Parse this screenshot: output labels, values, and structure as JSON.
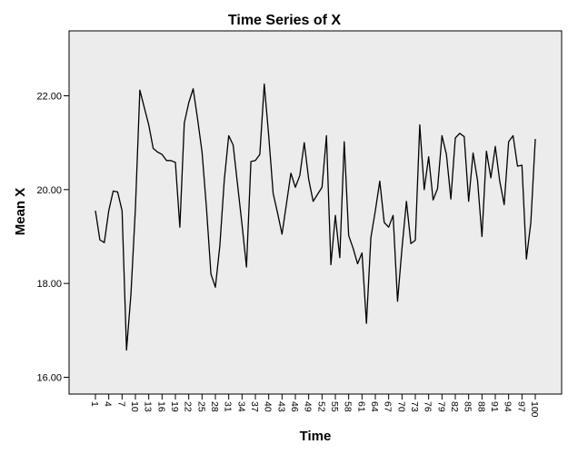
{
  "chart_data": {
    "type": "line",
    "title": "Time Series of X",
    "xlabel": "Time",
    "ylabel": "Mean X",
    "xlim": [
      1,
      100
    ],
    "ylim": [
      15.8,
      23.5
    ],
    "y_ticks": [
      16,
      18,
      20,
      22
    ],
    "y_tick_labels": [
      "16.00",
      "18.00",
      "20.00",
      "22.00"
    ],
    "x_tick_labels": [
      "1",
      "4",
      "7",
      "10",
      "13",
      "16",
      "19",
      "22",
      "25",
      "28",
      "31",
      "34",
      "37",
      "40",
      "43",
      "46",
      "49",
      "52",
      "55",
      "58",
      "61",
      "64",
      "67",
      "70",
      "73",
      "76",
      "79",
      "82",
      "85",
      "88",
      "91",
      "94",
      "97",
      "100"
    ],
    "grid": false,
    "legend": "none",
    "colors": {
      "plot_background": "#ececec",
      "line": "#000000",
      "axis": "#000000"
    },
    "series": [
      {
        "x": [
          1,
          2,
          3,
          4,
          5,
          6,
          7,
          8,
          9,
          10,
          11,
          12,
          13,
          14,
          15,
          16,
          17,
          18,
          19,
          20,
          21,
          22,
          23,
          24,
          25,
          26,
          27,
          28,
          29,
          30,
          31,
          32,
          33,
          34,
          35,
          36,
          37,
          38,
          39,
          40,
          41,
          42,
          43,
          44,
          45,
          46,
          47,
          48,
          49,
          50,
          51,
          52,
          53,
          54,
          55,
          56,
          57,
          58,
          59,
          60,
          61,
          62,
          63,
          64,
          65,
          66,
          67,
          68,
          69,
          70,
          71,
          72,
          73,
          74,
          75,
          76,
          77,
          78,
          79,
          80,
          81,
          82,
          83,
          84,
          85,
          86,
          87,
          88,
          89,
          90,
          91,
          92,
          93,
          94,
          95,
          96,
          97,
          98,
          99,
          100
        ],
        "values": [
          19.55,
          18.93,
          18.87,
          19.55,
          19.97,
          19.95,
          19.55,
          16.58,
          17.78,
          19.6,
          22.12,
          21.75,
          21.38,
          20.88,
          20.8,
          20.75,
          20.62,
          20.62,
          20.58,
          19.2,
          21.42,
          21.85,
          22.15,
          21.5,
          20.8,
          19.6,
          18.2,
          17.92,
          18.8,
          20.2,
          21.15,
          20.95,
          20.1,
          19.25,
          18.35,
          20.6,
          20.62,
          20.75,
          22.25,
          21.15,
          19.92,
          19.5,
          19.05,
          19.7,
          20.35,
          20.05,
          20.3,
          21.0,
          20.22,
          19.75,
          19.9,
          20.05,
          21.15,
          18.4,
          19.45,
          18.55,
          21.02,
          19.02,
          18.75,
          18.42,
          18.65,
          17.15,
          18.98,
          19.55,
          20.18,
          19.3,
          19.2,
          19.45,
          17.62,
          18.75,
          19.75,
          18.85,
          18.92,
          21.38,
          20.0,
          20.7,
          19.78,
          20.02,
          21.15,
          20.75,
          19.8,
          21.1,
          21.2,
          21.13,
          19.75,
          20.78,
          20.2,
          19.0,
          20.82,
          20.25,
          20.92,
          20.18,
          19.68,
          21.02,
          21.15,
          20.5,
          20.52,
          18.52,
          19.3,
          21.08
        ]
      }
    ]
  }
}
